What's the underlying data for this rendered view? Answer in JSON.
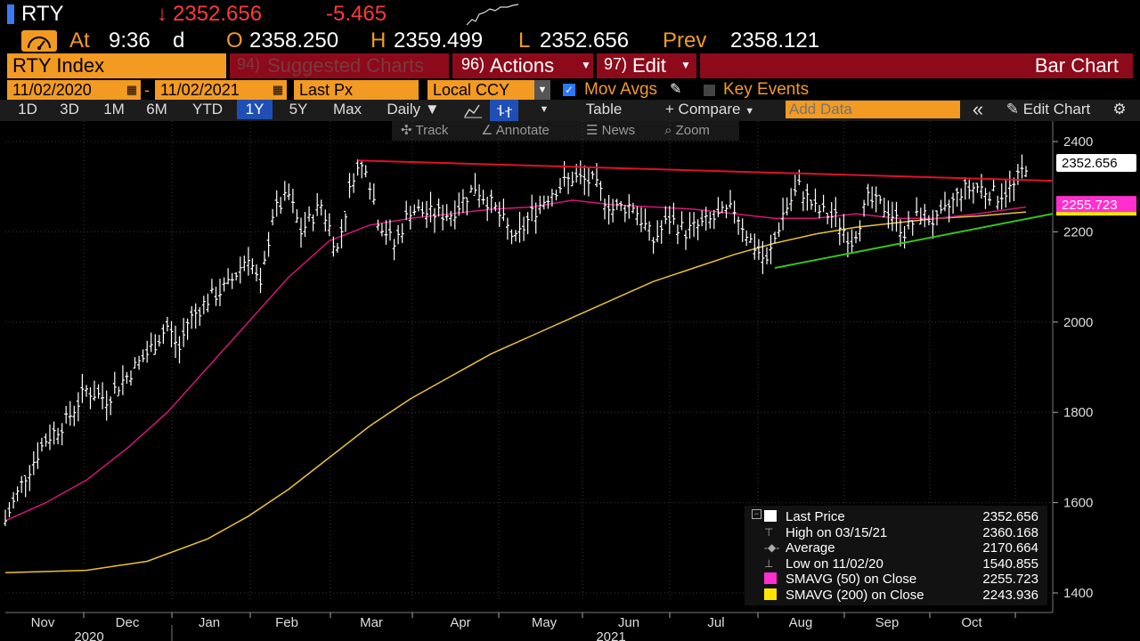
{
  "header": {
    "ticker": "RTY",
    "down_arrow": "↓",
    "last": "2352.656",
    "change": "-5.465",
    "at_label": "At",
    "time": "9:36",
    "time_suffix": "d",
    "open_label": "O",
    "open": "2358.250",
    "high_label": "H",
    "high": "2359.499",
    "low_label": "L",
    "low": "2352.656",
    "prev_label": "Prev",
    "prev": "2358.121"
  },
  "toolbar": {
    "security": "RTY Index",
    "suggested_num": "94)",
    "suggested": "Suggested Charts",
    "actions_num": "96)",
    "actions": "Actions",
    "edit_num": "97)",
    "edit": "Edit",
    "title": "Bar Chart"
  },
  "settings": {
    "start_date": "11/02/2020",
    "dash": "-",
    "end_date": "11/02/2021",
    "field": "Last Px",
    "currency": "Local CCY",
    "mov_avgs": "Mov Avgs",
    "key_events": "Key Events"
  },
  "periods": [
    "1D",
    "3D",
    "1M",
    "6M",
    "YTD",
    "1Y",
    "5Y",
    "Max"
  ],
  "selected_period": "1Y",
  "frequency": "Daily",
  "table_label": "Table",
  "compare_label": "+ Compare",
  "add_data_placeholder": "Add Data",
  "edit_chart_label": "Edit Chart",
  "chart_tools": {
    "track": "Track",
    "annotate": "Annotate",
    "news": "News",
    "zoom": "Zoom"
  },
  "chart_data": {
    "type": "bar",
    "y_ticks": [
      1400,
      1600,
      1800,
      2000,
      2200,
      2400
    ],
    "ylim": [
      1380,
      2440
    ],
    "x_month_labels": [
      "Nov",
      "Dec",
      "Jan",
      "Feb",
      "Mar",
      "Apr",
      "May",
      "Jun",
      "Jul",
      "Aug",
      "Sep",
      "Oct"
    ],
    "x_year_labels": [
      "2020",
      "2021"
    ],
    "last_price_tag": "2352.656",
    "sma50_tag": "2255.723",
    "colors": {
      "price": "#ffffff",
      "sma50": "#d6157a",
      "sma200": "#e9c335",
      "resistance": "#e0102a",
      "support": "#37c21b",
      "tag_sma50": "#ff2fcf",
      "tag_sma200": "#ffe600"
    },
    "close_path": [
      [
        0,
        1560
      ],
      [
        5,
        1660
      ],
      [
        10,
        1740
      ],
      [
        15,
        1780
      ],
      [
        20,
        1850
      ],
      [
        25,
        1830
      ],
      [
        30,
        1880
      ],
      [
        35,
        1930
      ],
      [
        40,
        1990
      ],
      [
        43,
        1940
      ],
      [
        45,
        2000
      ],
      [
        50,
        2050
      ],
      [
        55,
        2080
      ],
      [
        60,
        2150
      ],
      [
        63,
        2070
      ],
      [
        66,
        2240
      ],
      [
        70,
        2280
      ],
      [
        73,
        2200
      ],
      [
        78,
        2260
      ],
      [
        82,
        2160
      ],
      [
        86,
        2330
      ],
      [
        89,
        2350
      ],
      [
        92,
        2230
      ],
      [
        96,
        2170
      ],
      [
        100,
        2250
      ],
      [
        105,
        2240
      ],
      [
        110,
        2240
      ],
      [
        116,
        2300
      ],
      [
        121,
        2250
      ],
      [
        126,
        2180
      ],
      [
        130,
        2240
      ],
      [
        135,
        2290
      ],
      [
        140,
        2320
      ],
      [
        145,
        2310
      ],
      [
        150,
        2250
      ],
      [
        155,
        2260
      ],
      [
        160,
        2180
      ],
      [
        164,
        2230
      ],
      [
        168,
        2200
      ],
      [
        173,
        2220
      ],
      [
        180,
        2250
      ],
      [
        184,
        2180
      ],
      [
        188,
        2130
      ],
      [
        192,
        2240
      ],
      [
        196,
        2300
      ],
      [
        200,
        2250
      ],
      [
        205,
        2230
      ],
      [
        209,
        2180
      ],
      [
        213,
        2270
      ],
      [
        218,
        2250
      ],
      [
        222,
        2200
      ],
      [
        226,
        2240
      ],
      [
        230,
        2220
      ],
      [
        236,
        2290
      ],
      [
        240,
        2300
      ],
      [
        245,
        2280
      ],
      [
        249,
        2300
      ],
      [
        252,
        2350
      ]
    ],
    "series": [
      {
        "name": "Last Price",
        "value": 2352.656
      },
      {
        "name": "SMAVG (50)",
        "value": 2255.723,
        "points": [
          [
            0,
            1560
          ],
          [
            10,
            1600
          ],
          [
            20,
            1650
          ],
          [
            30,
            1720
          ],
          [
            40,
            1800
          ],
          [
            50,
            1900
          ],
          [
            60,
            2000
          ],
          [
            70,
            2100
          ],
          [
            80,
            2180
          ],
          [
            90,
            2215
          ],
          [
            100,
            2230
          ],
          [
            110,
            2240
          ],
          [
            120,
            2250
          ],
          [
            130,
            2255
          ],
          [
            140,
            2270
          ],
          [
            150,
            2260
          ],
          [
            160,
            2255
          ],
          [
            170,
            2250
          ],
          [
            180,
            2240
          ],
          [
            190,
            2230
          ],
          [
            200,
            2230
          ],
          [
            210,
            2240
          ],
          [
            220,
            2230
          ],
          [
            230,
            2230
          ],
          [
            240,
            2240
          ],
          [
            252,
            2255
          ]
        ]
      },
      {
        "name": "SMAVG (200)",
        "value": 2243.936,
        "points": [
          [
            0,
            1445
          ],
          [
            20,
            1450
          ],
          [
            35,
            1470
          ],
          [
            50,
            1520
          ],
          [
            60,
            1570
          ],
          [
            70,
            1630
          ],
          [
            80,
            1700
          ],
          [
            90,
            1770
          ],
          [
            100,
            1830
          ],
          [
            110,
            1880
          ],
          [
            120,
            1930
          ],
          [
            130,
            1970
          ],
          [
            140,
            2010
          ],
          [
            150,
            2050
          ],
          [
            160,
            2090
          ],
          [
            170,
            2120
          ],
          [
            180,
            2150
          ],
          [
            190,
            2175
          ],
          [
            200,
            2195
          ],
          [
            210,
            2210
          ],
          [
            220,
            2220
          ],
          [
            230,
            2230
          ],
          [
            240,
            2235
          ],
          [
            252,
            2244
          ]
        ]
      }
    ],
    "resistance_line": [
      [
        87,
        2358
      ],
      [
        252,
        2313
      ]
    ],
    "support_line": [
      [
        190,
        2120
      ],
      [
        252,
        2240
      ]
    ],
    "legend": [
      {
        "label": "Last Price",
        "value": "2352.656"
      },
      {
        "label": "High on 03/15/21",
        "value": "2360.168"
      },
      {
        "label": "Average",
        "value": "2170.664"
      },
      {
        "label": "Low on 11/02/20",
        "value": "1540.855"
      },
      {
        "label": "SMAVG (50)  on Close",
        "value": "2255.723"
      },
      {
        "label": "SMAVG (200)  on Close",
        "value": "2243.936"
      }
    ]
  }
}
